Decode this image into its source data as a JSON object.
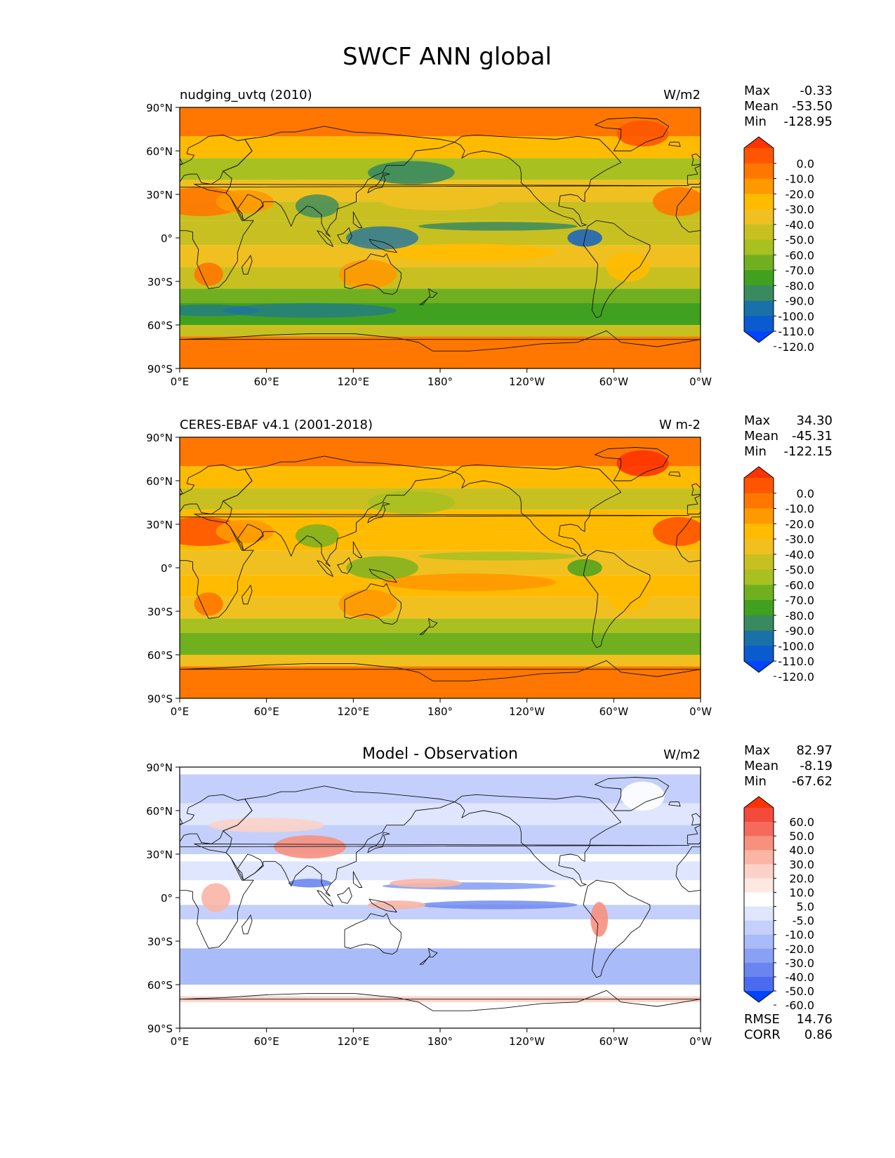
{
  "figure": {
    "title": "SWCF ANN global"
  },
  "lat_ticks": [
    "90°N",
    "60°N",
    "30°N",
    "0°",
    "30°S",
    "60°S",
    "90°S"
  ],
  "lon_ticks": [
    "0°E",
    "60°E",
    "120°E",
    "180°",
    "120°W",
    "60°W",
    "0°W"
  ],
  "panels": [
    {
      "id": "model",
      "left_title": "nudging_uvtq (2010)",
      "center_title": "",
      "units": "W/m2",
      "stats": [
        {
          "label": "Max",
          "value": "-0.33"
        },
        {
          "label": "Mean",
          "value": "-53.50"
        },
        {
          "label": "Min",
          "value": "-128.95"
        }
      ],
      "colorbar": {
        "labels": [
          "0.0",
          "-10.0",
          "-20.0",
          "-30.0",
          "-40.0",
          "-50.0",
          "-60.0",
          "-70.0",
          "-80.0",
          "-90.0",
          "-100.0",
          "-110.0",
          "-120.0"
        ],
        "colors": [
          "#ff3300",
          "#ff5500",
          "#ff7700",
          "#ff9900",
          "#ffbb00",
          "#f0c020",
          "#c8c020",
          "#a8c020",
          "#70b020",
          "#40a020",
          "#3a8a60",
          "#1a70a8",
          "#0a5ad0",
          "#0044ff"
        ]
      },
      "extra_stats": []
    },
    {
      "id": "obs",
      "left_title": "CERES-EBAF v4.1 (2001-2018)",
      "center_title": "",
      "units": "W m-2",
      "stats": [
        {
          "label": "Max",
          "value": "34.30"
        },
        {
          "label": "Mean",
          "value": "-45.31"
        },
        {
          "label": "Min",
          "value": "-122.15"
        }
      ],
      "colorbar": {
        "labels": [
          "0.0",
          "-10.0",
          "-20.0",
          "-30.0",
          "-40.0",
          "-50.0",
          "-60.0",
          "-70.0",
          "-80.0",
          "-90.0",
          "-100.0",
          "-110.0",
          "-120.0"
        ],
        "colors": [
          "#ff3300",
          "#ff5500",
          "#ff7700",
          "#ff9900",
          "#ffbb00",
          "#f0c020",
          "#c8c020",
          "#a8c020",
          "#70b020",
          "#40a020",
          "#3a8a60",
          "#1a70a8",
          "#0a5ad0",
          "#0044ff"
        ]
      },
      "extra_stats": []
    },
    {
      "id": "diff",
      "left_title": "",
      "center_title": "Model - Observation",
      "units": "W/m2",
      "stats": [
        {
          "label": "Max",
          "value": "82.97"
        },
        {
          "label": "Mean",
          "value": "-8.19"
        },
        {
          "label": "Min",
          "value": "-67.62"
        }
      ],
      "colorbar": {
        "labels": [
          "60.0",
          "50.0",
          "40.0",
          "30.0",
          "20.0",
          "10.0",
          "5.0",
          "-5.0",
          "-10.0",
          "-20.0",
          "-30.0",
          "-40.0",
          "-50.0",
          "-60.0"
        ],
        "colors": [
          "#ff3300",
          "#f24b3c",
          "#f56a5c",
          "#f8907e",
          "#fab5a5",
          "#fcd2c8",
          "#fde8e2",
          "#ffffff",
          "#dfe6fd",
          "#c4d0fb",
          "#a9bbf8",
          "#8aa0f4",
          "#6a85f0",
          "#4a6af0",
          "#0044ff"
        ]
      },
      "extra_stats": [
        {
          "label": "RMSE",
          "value": "14.76"
        },
        {
          "label": "CORR",
          "value": "0.86"
        }
      ]
    }
  ]
}
